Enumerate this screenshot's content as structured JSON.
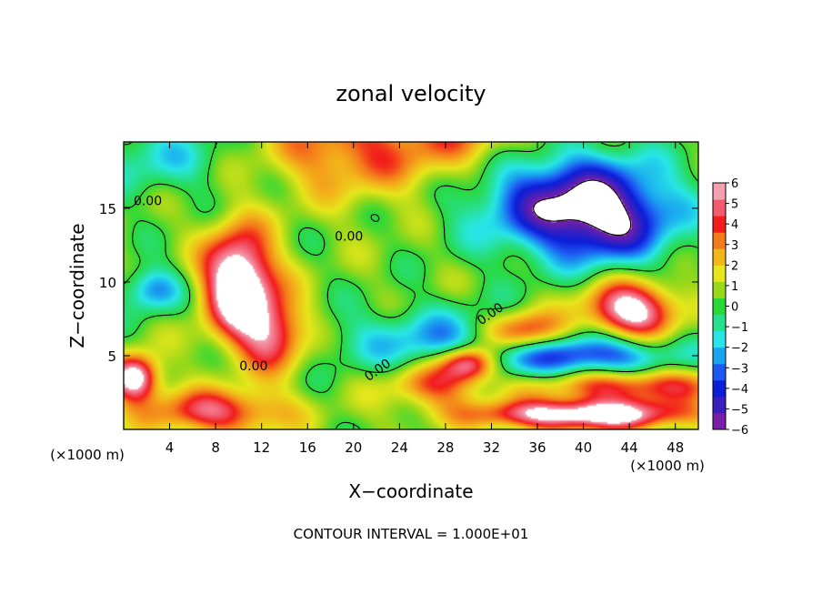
{
  "chart_data": {
    "type": "heatmap",
    "title": "zonal velocity",
    "xlabel": "X−coordinate",
    "ylabel": "Z−coordinate",
    "x_unit_note_left": "(×1000 m)",
    "x_unit_note_right": "(×1000 m)",
    "footer": "CONTOUR INTERVAL = 1.000E+01",
    "xlim": [
      0,
      50
    ],
    "ylim": [
      0,
      19.5
    ],
    "x_ticks": [
      4,
      8,
      12,
      16,
      20,
      24,
      28,
      32,
      36,
      40,
      44,
      48
    ],
    "x_tick_labels": [
      "4",
      "8",
      "12",
      "16",
      "20",
      "24",
      "28",
      "32",
      "36",
      "40",
      "44",
      "48"
    ],
    "y_ticks": [
      5,
      10,
      15
    ],
    "y_tick_labels": [
      "5",
      "10",
      "15"
    ],
    "colorbar": {
      "range": [
        -6,
        6
      ],
      "tick_values": [
        6,
        5,
        4,
        3,
        2,
        1,
        0,
        -1,
        -2,
        -3,
        -4,
        -5,
        -6
      ],
      "tick_labels": [
        "6",
        "5",
        "4",
        "3",
        "2",
        "1",
        "0",
        "−1",
        "−2",
        "−3",
        "−4",
        "−5",
        "−6"
      ],
      "colors": [
        "#7a1fa8",
        "#3a1fbf",
        "#0b1ed8",
        "#1f57f2",
        "#1aa5f0",
        "#28e6e6",
        "#26e08c",
        "#2ad838",
        "#9ad81a",
        "#e6e61a",
        "#f2b81a",
        "#f47b1a",
        "#f21c1c",
        "#f25a6e",
        "#f4a0b0"
      ],
      "out_of_range_color": "#ffffff"
    },
    "contour_label": "0.00",
    "contour_label_positions": [
      [
        2.1,
        15.2
      ],
      [
        19.6,
        12.8
      ],
      [
        11.3,
        4.0
      ],
      [
        22.3,
        3.8
      ],
      [
        32.1,
        7.6
      ]
    ],
    "field_features": [
      {
        "x": 29,
        "y": 19.5,
        "sx": 9,
        "sy": 4.5,
        "v": 3.5
      },
      {
        "x": 18,
        "y": 19,
        "sx": 6,
        "sy": 3,
        "v": 2.5
      },
      {
        "x": 3,
        "y": 18.5,
        "sx": 6,
        "sy": 2.5,
        "v": -2
      },
      {
        "x": 37,
        "y": 16,
        "sx": 9,
        "sy": 3.5,
        "v": -5.5
      },
      {
        "x": 42,
        "y": 14,
        "sx": 6,
        "sy": 3,
        "v": -4.5
      },
      {
        "x": 10,
        "y": 10,
        "sx": 3,
        "sy": 3.5,
        "v": 8
      },
      {
        "x": 13,
        "y": 6.5,
        "sx": 3,
        "sy": 2.5,
        "v": 5
      },
      {
        "x": 2.5,
        "y": 9.5,
        "sx": 2.5,
        "sy": 1.5,
        "v": -3.5
      },
      {
        "x": 35,
        "y": 6.5,
        "sx": 4,
        "sy": 1.5,
        "v": 7
      },
      {
        "x": 30,
        "y": 4.5,
        "sx": 2.5,
        "sy": 1.2,
        "v": 7
      },
      {
        "x": 44,
        "y": 8,
        "sx": 4,
        "sy": 2,
        "v": 7
      },
      {
        "x": 31,
        "y": 6,
        "sx": 12,
        "sy": 2.2,
        "v": -3.5
      },
      {
        "x": 40,
        "y": 5,
        "sx": 8,
        "sy": 1.5,
        "v": -4
      },
      {
        "x": 27,
        "y": 3,
        "sx": 4,
        "sy": 1.5,
        "v": 3.5
      },
      {
        "x": 44,
        "y": 3,
        "sx": 8,
        "sy": 1.2,
        "v": 4.5
      },
      {
        "x": 8,
        "y": 1.2,
        "sx": 6,
        "sy": 1.5,
        "v": 4.5
      },
      {
        "x": 1,
        "y": 3.5,
        "sx": 2,
        "sy": 1.5,
        "v": 7
      },
      {
        "x": 40,
        "y": 1,
        "sx": 9,
        "sy": 1,
        "v": 7
      }
    ]
  }
}
